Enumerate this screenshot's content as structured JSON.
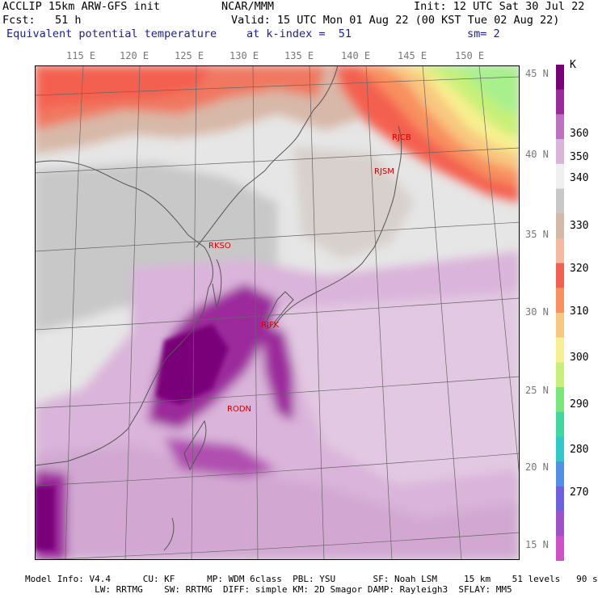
{
  "header": {
    "model": "ACCLIP 15km ARW-GFS init",
    "center": "NCAR/MMM",
    "init": "Init: 12 UTC Sat 30 Jul 22",
    "fcst": "Fcst:   51 h",
    "valid": "Valid: 15 UTC Mon 01 Aug 22 (00 KST Tue 02 Aug 22)",
    "field": "Equivalent potential temperature",
    "level": "at k-index =  51",
    "smooth": "sm= 2"
  },
  "longitudes": [
    "115 E",
    "120 E",
    "125 E",
    "130 E",
    "135 E",
    "140 E",
    "145 E",
    "150 E"
  ],
  "latitudes": [
    "45 N",
    "40 N",
    "35 N",
    "30 N",
    "25 N",
    "20 N",
    "15 N"
  ],
  "stations": [
    "RJCB",
    "RJSM",
    "RKSO",
    "RJFK",
    "RODN"
  ],
  "colorbar": {
    "unit": "K",
    "labels": [
      "360",
      "350",
      "340",
      "330",
      "320",
      "310",
      "300",
      "290",
      "280",
      "270"
    ],
    "colors": [
      "#7a007a",
      "#9c2a9c",
      "#c070c0",
      "#dab4da",
      "#f0f0f0",
      "#c8c8c8",
      "#d4b8a8",
      "#f8b8a0",
      "#f46050",
      "#f89060",
      "#f8c880",
      "#f8f090",
      "#c8f078",
      "#78e878",
      "#40d8a0",
      "#30c8c8",
      "#5090e8",
      "#7060e0",
      "#a050c8",
      "#d050c8"
    ]
  },
  "footer": {
    "line1": "Model Info: V4.4      CU: KF      MP: WDM 6class  PBL: YSU       SF: Noah LSM     15 km    51 levels   90 sec",
    "line2": "             LW: RRTMG    SW: RRTMG  DIFF: simple KM: 2D Smagor DAMP: Rayleigh3  SFLAY: MM5"
  }
}
